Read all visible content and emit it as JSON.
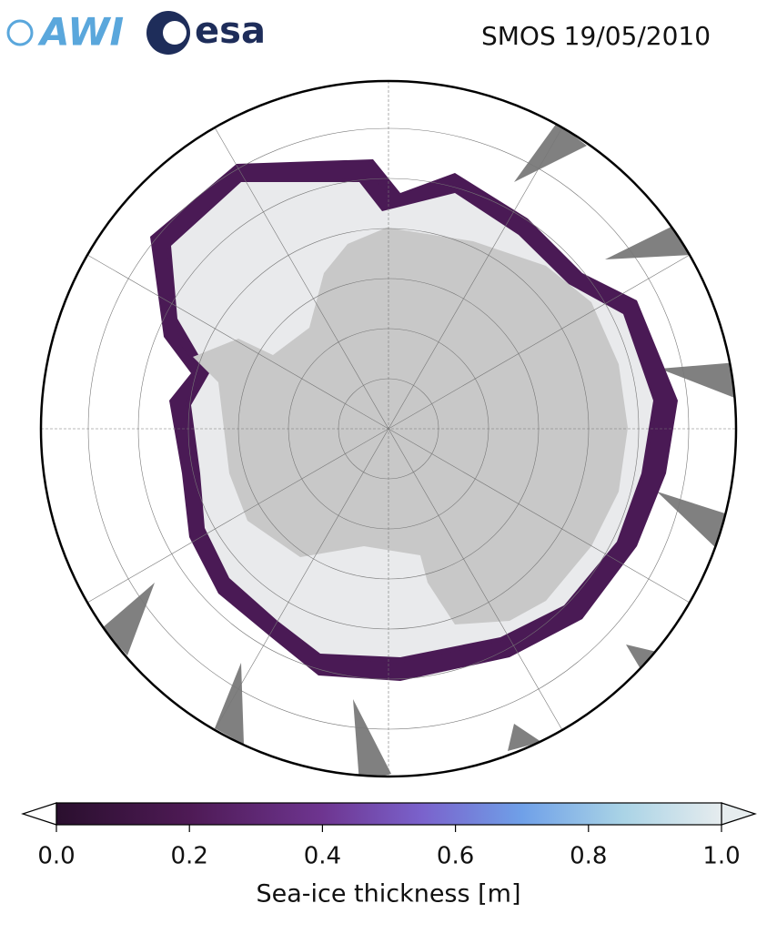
{
  "logos": {
    "awi": "AWI",
    "esa": "esa"
  },
  "title": "SMOS 19/05/2010",
  "colorbar": {
    "label": "Sea-ice thickness [m]",
    "lim": [
      0,
      1
    ],
    "ticks": [
      {
        "value": 0,
        "label": "0.0"
      },
      {
        "value": 0.2,
        "label": "0.2"
      },
      {
        "value": 0.4,
        "label": "0.4"
      },
      {
        "value": 0.6,
        "label": "0.6"
      },
      {
        "value": 0.8,
        "label": "0.8"
      },
      {
        "value": 1,
        "label": "1.0"
      }
    ]
  }
}
